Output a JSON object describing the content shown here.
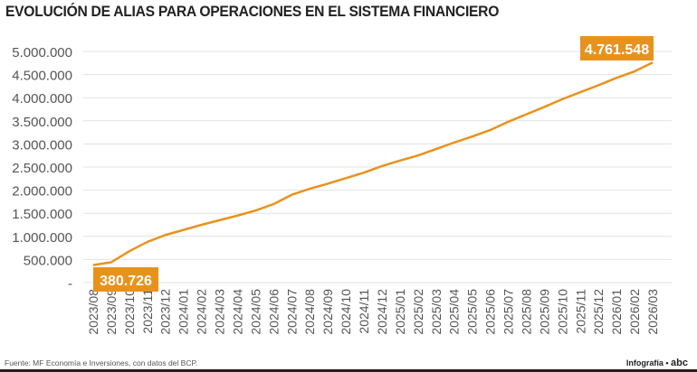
{
  "chart_data": {
    "type": "line",
    "title": "EVOLUCIÓN DE ALIAS PARA OPERACIONES EN EL SISTEMA FINANCIERO",
    "xlabel": "",
    "ylabel": "",
    "ylim": [
      0,
      5000000
    ],
    "yticks": [
      0,
      500000,
      1000000,
      1500000,
      2000000,
      2500000,
      3000000,
      3500000,
      4000000,
      4500000,
      5000000
    ],
    "ytick_labels": [
      "-",
      "500.000",
      "1.000.000",
      "1.500.000",
      "2.000.000",
      "2.500.000",
      "3.000.000",
      "3.500.000",
      "4.000.000",
      "4.500.000",
      "5.000.000"
    ],
    "grid": true,
    "color": "#E8921E",
    "categories": [
      "2023/08",
      "2023/09",
      "2023/10",
      "2023/11",
      "2023/12",
      "2024/01",
      "2024/02",
      "2024/03",
      "2024/04",
      "2024/05",
      "2024/06",
      "2024/07",
      "2024/08",
      "2024/09",
      "2024/10",
      "2024/11",
      "2024/12",
      "2025/01",
      "2025/02",
      "2025/03",
      "2025/04",
      "2025/05",
      "2025/06",
      "2025/07",
      "2025/08",
      "2025/09",
      "2025/10",
      "2025/11",
      "2025/12",
      "2026/01",
      "2026/02",
      "2026/03"
    ],
    "values": [
      380726,
      440000,
      680000,
      880000,
      1030000,
      1140000,
      1250000,
      1350000,
      1450000,
      1560000,
      1700000,
      1900000,
      2030000,
      2140000,
      2260000,
      2380000,
      2520000,
      2640000,
      2750000,
      2890000,
      3030000,
      3160000,
      3300000,
      3480000,
      3640000,
      3800000,
      3970000,
      4120000,
      4270000,
      4430000,
      4570000,
      4761548
    ],
    "annotations": [
      {
        "category": "2023/08",
        "label": "380.726"
      },
      {
        "category": "2026/03",
        "label": "4.761.548"
      }
    ]
  },
  "footer": {
    "source": "Fuente: MF Economía e Inversiones, con datos del BCP.",
    "credit": "Infografía •",
    "logo": "abc"
  }
}
